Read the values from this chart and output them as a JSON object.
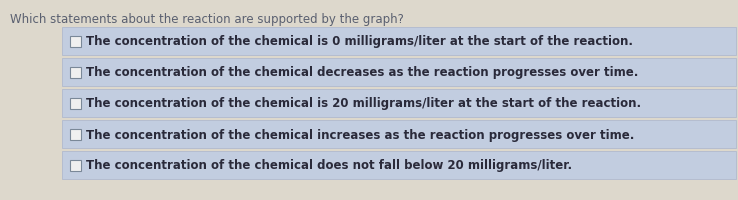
{
  "title": "Which statements about the reaction are supported by the graph?",
  "title_fontsize": 8.5,
  "title_color": "#5a6070",
  "bg_color": "#ddd8cc",
  "row_bg_color": "#c2cde0",
  "row_border_color": "#aab5cc",
  "checkbox_color": "#f0f0f0",
  "checkbox_border_color": "#7a8898",
  "text_color": "#2a2a3a",
  "text_fontsize": 8.5,
  "statements": [
    "The concentration of the chemical is 0 milligrams/liter at the start of the reaction.",
    "The concentration of the chemical decreases as the reaction progresses over time.",
    "The concentration of the chemical is 20 milligrams/liter at the start of the reaction.",
    "The concentration of the chemical increases as the reaction progresses over time.",
    "The concentration of the chemical does not fall below 20 milligrams/liter."
  ]
}
